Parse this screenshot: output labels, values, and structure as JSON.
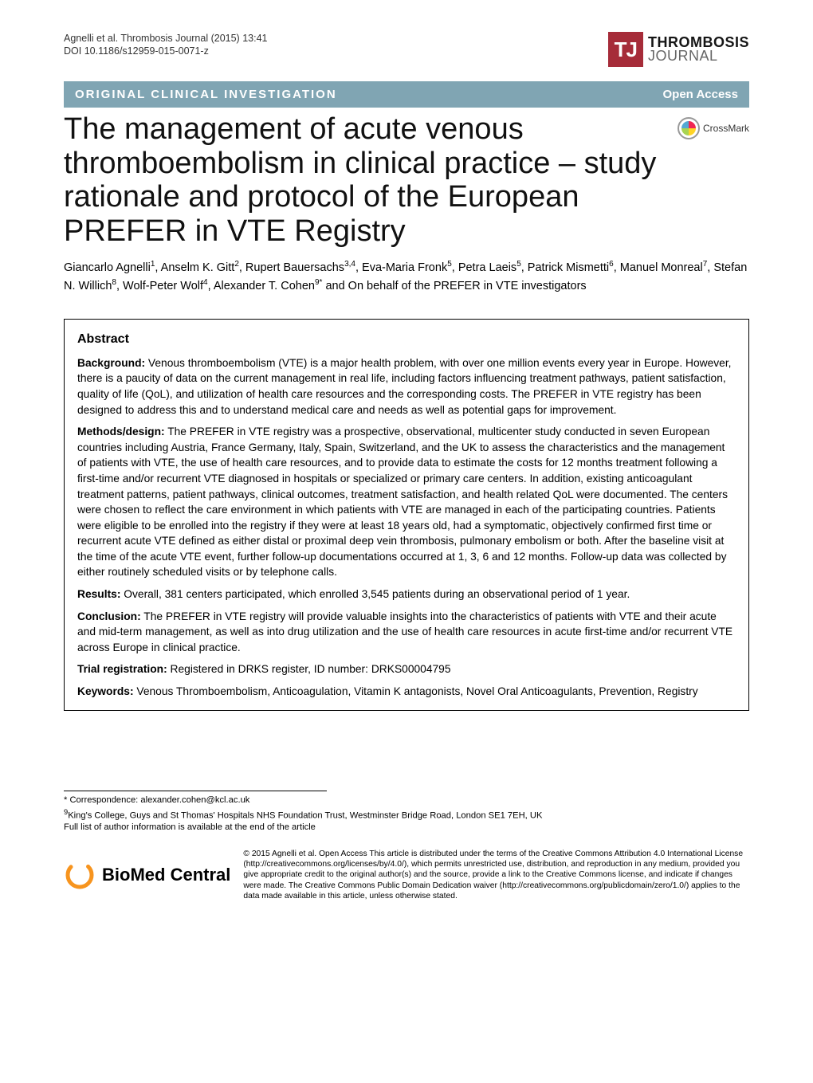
{
  "header": {
    "citation_line1": "Agnelli et al. Thrombosis Journal  (2015) 13:41",
    "citation_line2": "DOI 10.1186/s12959-015-0071-z",
    "journal_mark": "TJ",
    "journal_name_bold": "THROMBOSIS",
    "journal_name_light": "JOURNAL"
  },
  "band": {
    "section": "ORIGINAL CLINICAL INVESTIGATION",
    "open_access": "Open Access"
  },
  "crossmark": "CrossMark",
  "title": "The management of acute venous thromboembolism in clinical practice – study rationale and protocol of the European PREFER in VTE Registry",
  "authors_html": "Giancarlo Agnelli<sup>1</sup>, Anselm K. Gitt<sup>2</sup>, Rupert Bauersachs<sup>3,4</sup>, Eva-Maria Fronk<sup>5</sup>, Petra Laeis<sup>5</sup>, Patrick Mismetti<sup>6</sup>, Manuel Monreal<sup>7</sup>, Stefan N. Willich<sup>8</sup>, Wolf-Peter Wolf<sup>4</sup>, Alexander T. Cohen<sup>9*</sup> and On behalf of the PREFER in VTE investigators",
  "abstract": {
    "heading": "Abstract",
    "background_label": "Background:",
    "background": " Venous thromboembolism (VTE) is a major health problem, with over one million events every year in Europe. However, there is a paucity of data on the current management in real life, including factors influencing treatment pathways, patient satisfaction, quality of life (QoL), and utilization of health care resources and the corresponding costs. The PREFER in VTE registry has been designed to address this and to understand medical care and needs as well as potential gaps for improvement.",
    "methods_label": "Methods/design:",
    "methods": " The PREFER in VTE registry was a prospective, observational, multicenter study conducted in seven European countries including Austria, France Germany, Italy, Spain, Switzerland, and the UK to assess the characteristics and the management of patients with VTE, the use of health care resources, and to provide data to estimate the costs for 12 months treatment following a first-time and/or recurrent VTE diagnosed in hospitals or specialized or primary care centers. In addition, existing anticoagulant treatment patterns, patient pathways, clinical outcomes, treatment satisfaction, and health related QoL were documented. The centers were chosen to reflect the care environment in which patients with VTE are managed in each of the participating countries. Patients were eligible to be enrolled into the registry if they were at least 18 years old, had a symptomatic, objectively confirmed first time or recurrent acute VTE defined as either distal or proximal deep vein thrombosis, pulmonary embolism or both. After the baseline visit at the time of the acute VTE event, further follow-up documentations occurred at 1, 3, 6 and 12 months. Follow-up data was collected by either routinely scheduled visits or by telephone calls.",
    "results_label": "Results:",
    "results": " Overall, 381 centers participated, which enrolled 3,545 patients during an observational period of 1 year.",
    "conclusion_label": "Conclusion:",
    "conclusion": " The PREFER in VTE registry will provide valuable insights into the characteristics of patients with VTE and their acute and mid-term management, as well as into drug utilization and the use of health care resources in acute first-time and/or recurrent VTE across Europe in clinical practice.",
    "trial_label": "Trial registration:",
    "trial": " Registered in DRKS register, ID number: DRKS00004795",
    "keywords_label": "Keywords:",
    "keywords": " Venous Thromboembolism, Anticoagulation, Vitamin K antagonists, Novel Oral Anticoagulants, Prevention, Registry"
  },
  "correspondence": {
    "line1": "* Correspondence: alexander.cohen@kcl.ac.uk",
    "line2": "9King's College, Guys and St Thomas' Hospitals NHS Foundation Trust, Westminster Bridge Road, London SE1 7EH, UK",
    "line3": "Full list of author information is available at the end of the article"
  },
  "bmc": {
    "logo_text": "BioMed Central",
    "license": "© 2015 Agnelli et al. Open Access This article is distributed under the terms of the Creative Commons Attribution 4.0 International License (http://creativecommons.org/licenses/by/4.0/), which permits unrestricted use, distribution, and reproduction in any medium, provided you give appropriate credit to the original author(s) and the source, provide a link to the Creative Commons license, and indicate if changes were made. The Creative Commons Public Domain Dedication waiver (http://creativecommons.org/publicdomain/zero/1.0/) applies to the data made available in this article, unless otherwise stated."
  },
  "colors": {
    "band_bg": "#80a5b3",
    "tj_bg": "#a62c39",
    "bmc_orange": "#f7941e"
  }
}
